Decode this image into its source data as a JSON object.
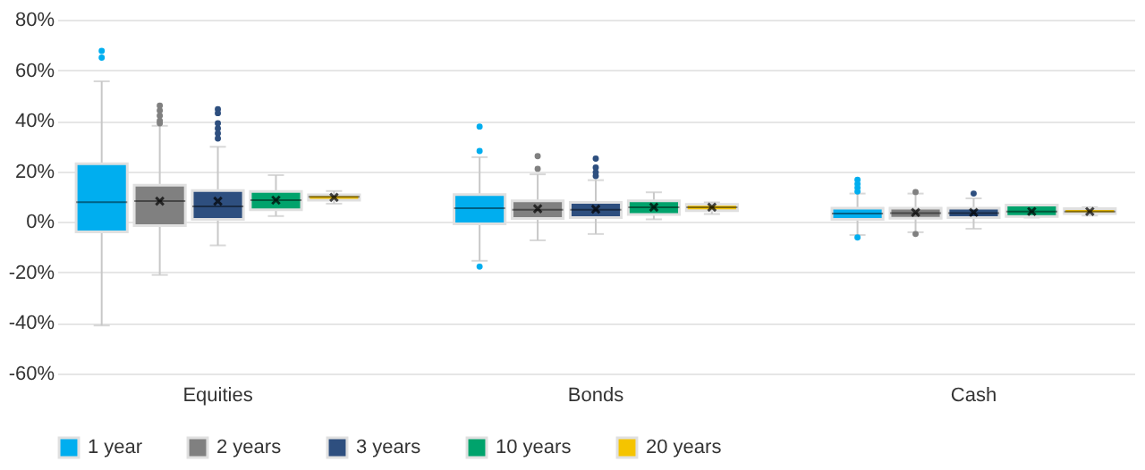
{
  "chart_data": {
    "type": "box",
    "categories": [
      "Equities",
      "Bonds",
      "Cash"
    ],
    "ylim": [
      -60,
      80
    ],
    "yticks": [
      {
        "value": -60,
        "label": "-60%"
      },
      {
        "value": -40,
        "label": "-40%"
      },
      {
        "value": -20,
        "label": "-20%"
      },
      {
        "value": 0,
        "label": "0%"
      },
      {
        "value": 20,
        "label": "20%"
      },
      {
        "value": 40,
        "label": "40%"
      },
      {
        "value": 60,
        "label": "60%"
      },
      {
        "value": 80,
        "label": "80%"
      }
    ],
    "grid": "y",
    "legend": "bottom",
    "series": [
      {
        "name": "1 year",
        "color": "#00aeef",
        "boxes": [
          {
            "low": -41,
            "q1": -4,
            "median": 7.8,
            "q3": 23,
            "high": 55.6,
            "outliers": [
              67.6,
              65
            ]
          },
          {
            "low": -15.4,
            "q1": -0.8,
            "median": 5.4,
            "q3": 10.8,
            "high": 25.6,
            "outliers": [
              37.7,
              28,
              -17.7
            ]
          },
          {
            "low": -5.2,
            "q1": 1,
            "median": 3.3,
            "q3": 5.4,
            "high": 11.2,
            "outliers": [
              16.6,
              15,
              13.5,
              12,
              -6.2
            ]
          }
        ]
      },
      {
        "name": "2 years",
        "color": "#808080",
        "boxes": [
          {
            "low": -21,
            "q1": -1.5,
            "median": 8.2,
            "q3": 14.5,
            "high": 38,
            "mean": 8.2,
            "outliers": [
              46,
              44,
              42,
              40,
              39
            ]
          },
          {
            "low": -7.3,
            "q1": 1.3,
            "median": 4.8,
            "q3": 8.3,
            "high": 18.8,
            "mean": 5.2,
            "outliers": [
              26,
              21
            ]
          },
          {
            "low": -4.1,
            "q1": 1.4,
            "median": 3.5,
            "q3": 5.4,
            "high": 11.2,
            "mean": 3.7,
            "outliers": [
              11.8,
              -4.8
            ]
          }
        ]
      },
      {
        "name": "3 years",
        "color": "#2e4f7f",
        "boxes": [
          {
            "low": -9.3,
            "q1": 1,
            "median": 6.1,
            "q3": 12.4,
            "high": 29.7,
            "mean": 8.2,
            "outliers": [
              44.6,
              43,
              39,
              37,
              35,
              33
            ]
          },
          {
            "low": -4.8,
            "q1": 1.7,
            "median": 4.8,
            "q3": 7.7,
            "high": 16.5,
            "mean": 5,
            "outliers": [
              25,
              21.5,
              19.6,
              18.1
            ]
          },
          {
            "low": -2.7,
            "q1": 1.7,
            "median": 3.5,
            "q3": 5.4,
            "high": 9.3,
            "mean": 3.7,
            "outliers": [
              11.2
            ]
          }
        ]
      },
      {
        "name": "10 years",
        "color": "#00a36c",
        "boxes": [
          {
            "low": 2.3,
            "q1": 4.8,
            "median": 8.6,
            "q3": 12,
            "high": 18.5,
            "mean": 8.6
          },
          {
            "low": 1,
            "q1": 2.9,
            "median": 5.8,
            "q3": 8.3,
            "high": 11.7,
            "mean": 5.8
          },
          {
            "low": 1.7,
            "q1": 2.1,
            "median": 4.1,
            "q3": 6.6,
            "high": 6.8,
            "mean": 4.1
          }
        ]
      },
      {
        "name": "20 years",
        "color": "#f5c400",
        "boxes": [
          {
            "low": 7.2,
            "q1": 8.6,
            "median": 9.9,
            "q3": 10.7,
            "high": 12.2,
            "mean": 9.7
          },
          {
            "low": 3.1,
            "q1": 4.4,
            "median": 5.8,
            "q3": 6.9,
            "high": 7.7,
            "mean": 5.8
          },
          {
            "low": 2.5,
            "q1": 3.3,
            "median": 4.1,
            "q3": 5.2,
            "high": 5.8,
            "mean": 4.1
          }
        ]
      }
    ]
  }
}
